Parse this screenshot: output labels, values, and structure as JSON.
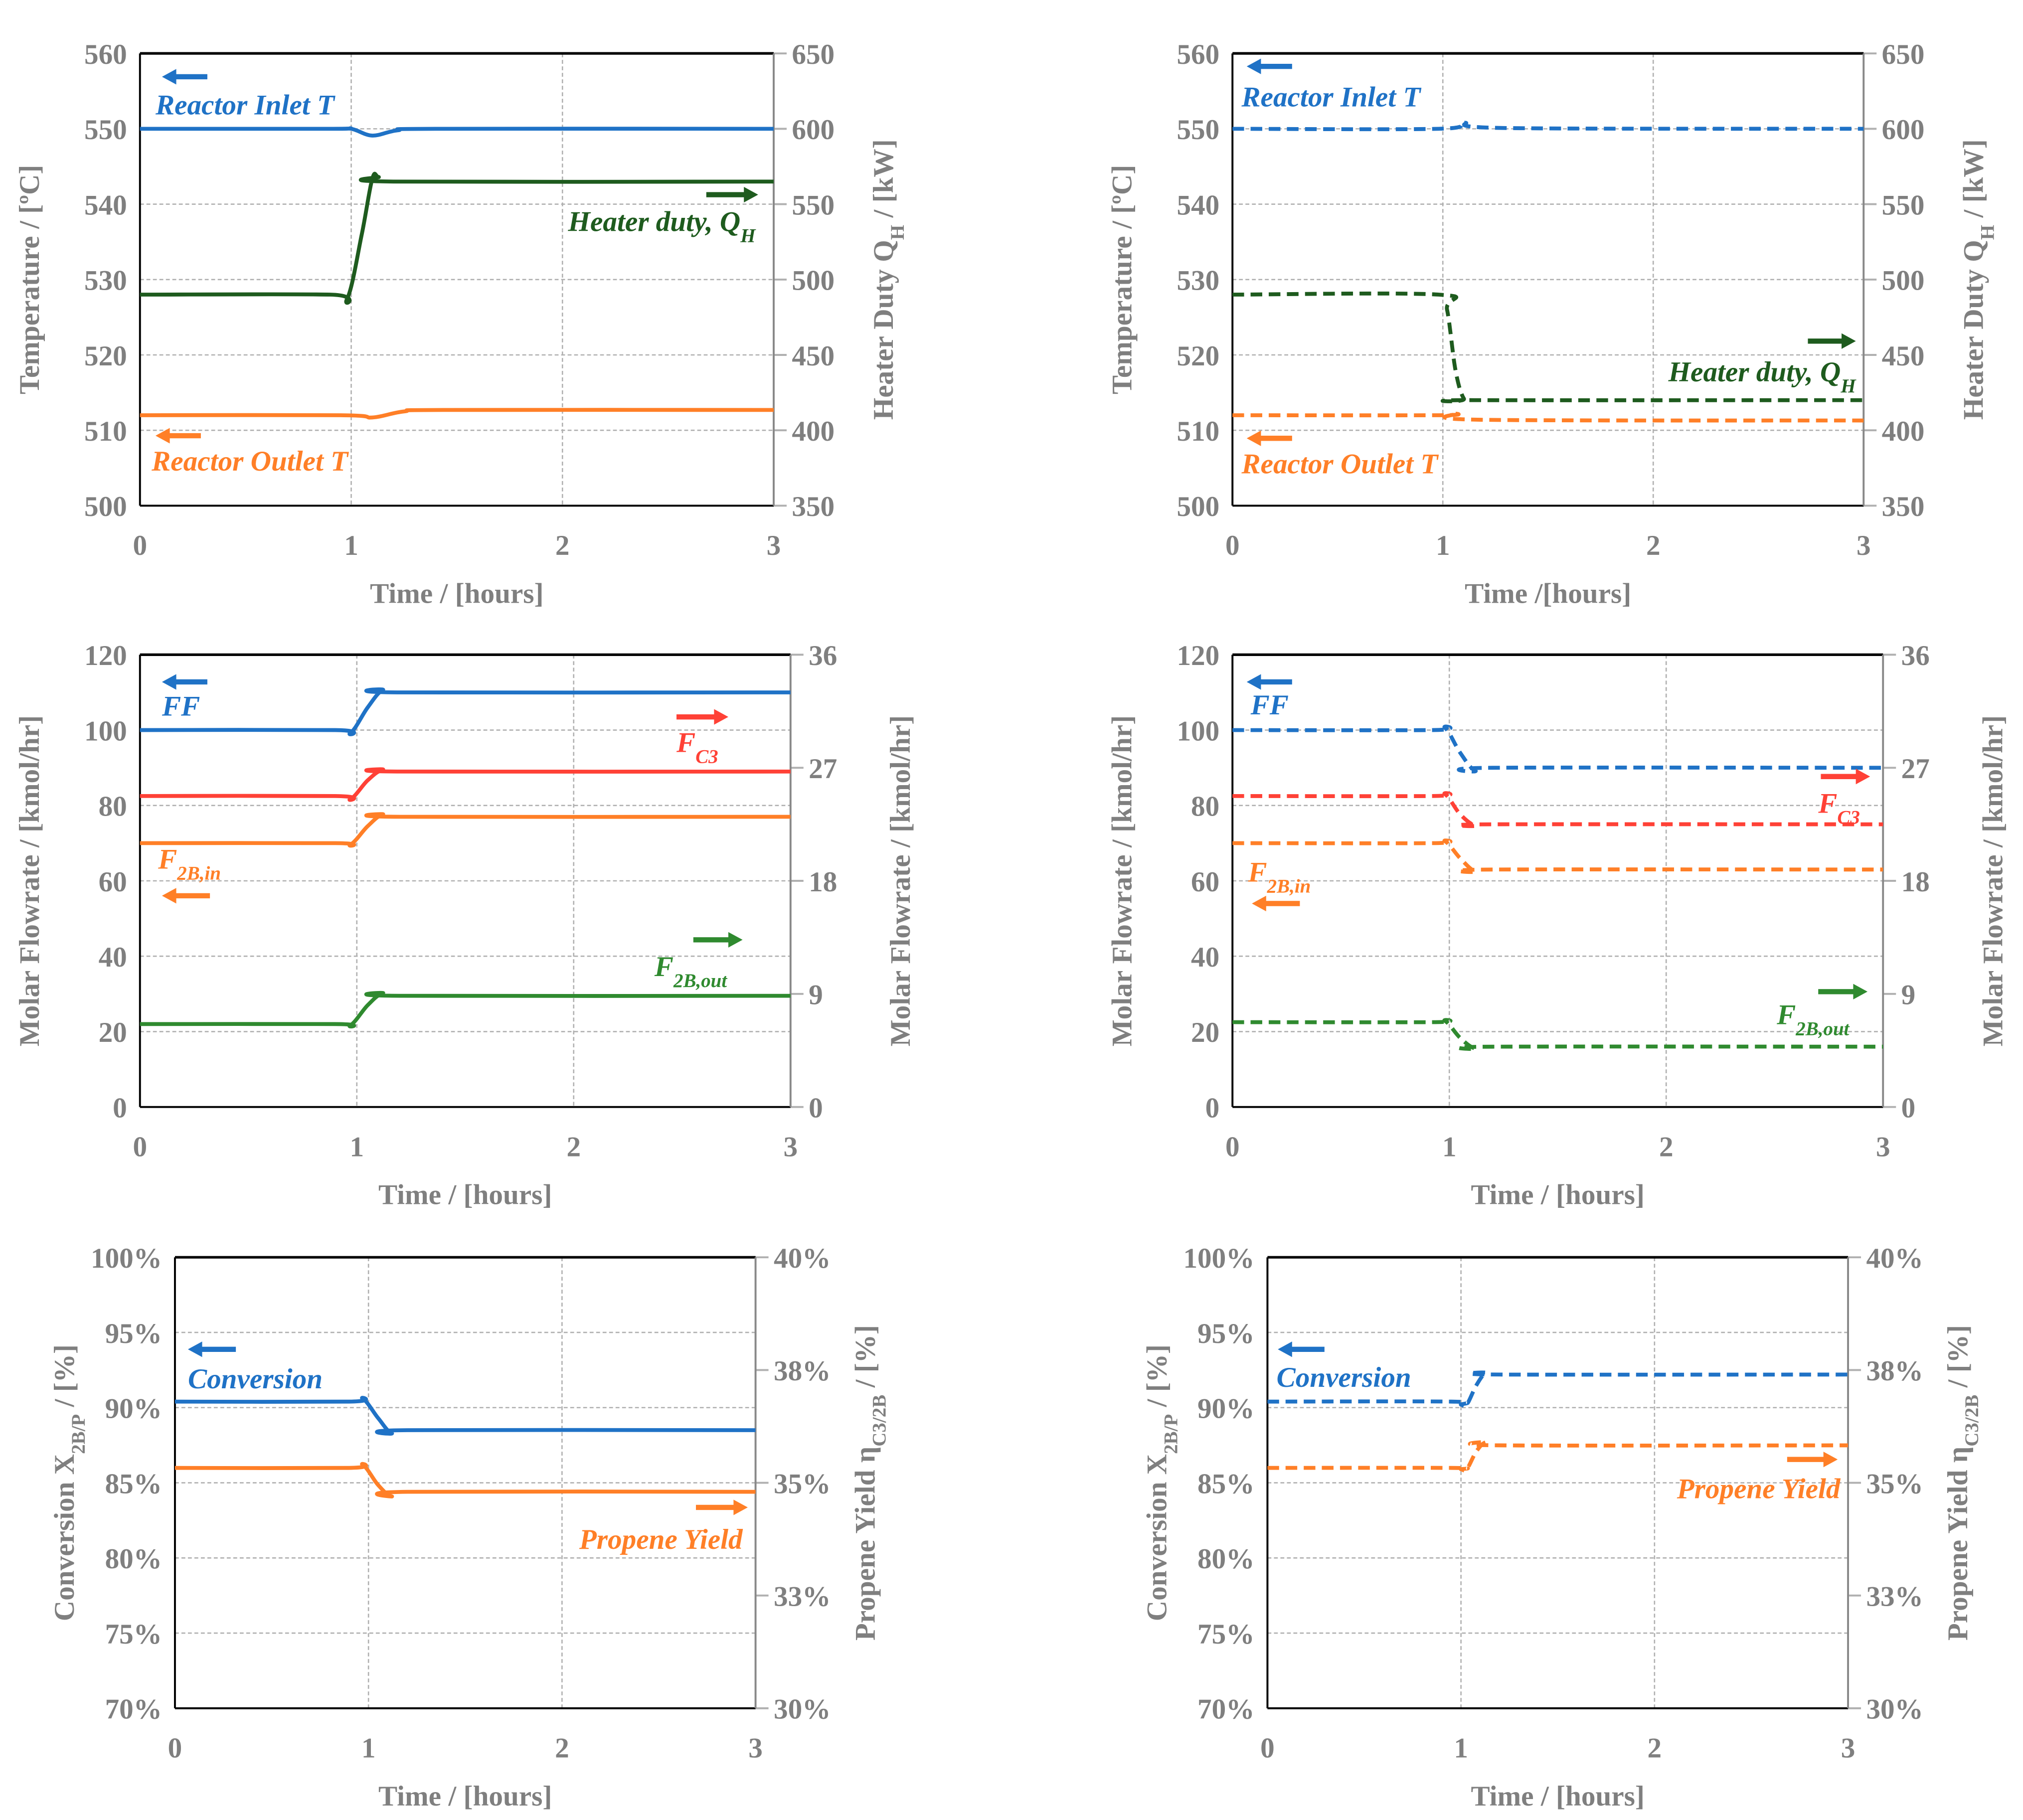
{
  "colors": {
    "blue": "#1f72c6",
    "orange": "#ff7f27",
    "darkgreen": "#1e5b1e",
    "green": "#2f8a2f",
    "red": "#ff4136",
    "axis": "#7f7f7f",
    "grid": "#b0b0b0"
  },
  "chart_data": [
    {
      "type": "line",
      "id": "temp-solid",
      "style": "solid",
      "xlabel": "Time / [hours]",
      "xlim": [
        0,
        3
      ],
      "xticks": [
        0,
        1,
        2,
        3
      ],
      "ylabel": {
        "text": "Temperature / [ºC]"
      },
      "ylim": [
        500,
        560
      ],
      "yticks": [
        500,
        510,
        520,
        530,
        540,
        550,
        560
      ],
      "ytick_labels": [
        "500",
        "510",
        "520",
        "530",
        "540",
        "550",
        "560"
      ],
      "y2label": {
        "text": "Heater Duty Q",
        "sub": "H",
        "rest": "/ [kW]"
      },
      "y2lim": [
        350,
        650
      ],
      "y2ticks": [
        350,
        400,
        450,
        500,
        550,
        600,
        650
      ],
      "y2tick_labels": [
        "350",
        "400",
        "450",
        "500",
        "550",
        "600",
        "650"
      ],
      "series": [
        {
          "name": "Reactor Inlet T",
          "color": "blue",
          "axis": "left",
          "arrow": "left",
          "points": [
            [
              0,
              550
            ],
            [
              0.9,
              550
            ],
            [
              1.0,
              550
            ],
            [
              1.1,
              549.1
            ],
            [
              1.22,
              549.8
            ],
            [
              1.4,
              550
            ],
            [
              3,
              550
            ]
          ]
        },
        {
          "name": "Heater duty, Q",
          "sub": "H",
          "color": "darkgreen",
          "axis": "right",
          "arrow": "right",
          "points": [
            [
              0,
              490
            ],
            [
              0.9,
              490
            ],
            [
              0.98,
              487
            ],
            [
              1.05,
              530
            ],
            [
              1.1,
              567
            ],
            [
              1.13,
              568
            ],
            [
              1.2,
              565
            ],
            [
              3,
              565
            ]
          ]
        },
        {
          "name": "Reactor Outlet T",
          "color": "orange",
          "axis": "left",
          "arrow": "left",
          "points": [
            [
              0,
              512
            ],
            [
              0.95,
              512
            ],
            [
              1.1,
              511.7
            ],
            [
              1.25,
              512.5
            ],
            [
              1.45,
              512.7
            ],
            [
              3,
              512.7
            ]
          ]
        }
      ]
    },
    {
      "type": "line",
      "id": "temp-dashed",
      "style": "dashed",
      "xlabel": "Time /[hours]",
      "xlim": [
        0,
        3
      ],
      "xticks": [
        0,
        1,
        2,
        3
      ],
      "ylabel": {
        "text": "Temperature / [ºC]"
      },
      "ylim": [
        500,
        560
      ],
      "yticks": [
        500,
        510,
        520,
        530,
        540,
        550,
        560
      ],
      "ytick_labels": [
        "500",
        "510",
        "520",
        "530",
        "540",
        "550",
        "560"
      ],
      "y2label": {
        "text": "Heater Duty Q",
        "sub": "H",
        "rest": "/ [kW]"
      },
      "y2lim": [
        350,
        650
      ],
      "y2ticks": [
        350,
        400,
        450,
        500,
        550,
        600,
        650
      ],
      "y2tick_labels": [
        "350",
        "400",
        "450",
        "500",
        "550",
        "600",
        "650"
      ],
      "series": [
        {
          "name": "Reactor Inlet T",
          "color": "blue",
          "axis": "left",
          "arrow": "left",
          "points": [
            [
              0,
              550
            ],
            [
              0.98,
              550
            ],
            [
              1.1,
              550.8
            ],
            [
              1.3,
              550.1
            ],
            [
              3,
              550
            ]
          ]
        },
        {
          "name": "Heater duty, Q",
          "sub": "H",
          "color": "darkgreen",
          "axis": "right",
          "arrow": "right",
          "points": [
            [
              0,
              490
            ],
            [
              0.98,
              490
            ],
            [
              1.02,
              480
            ],
            [
              1.06,
              440
            ],
            [
              1.1,
              421
            ],
            [
              1.15,
              420
            ],
            [
              3,
              420
            ]
          ]
        },
        {
          "name": "Reactor Outlet T",
          "color": "orange",
          "axis": "left",
          "arrow": "left",
          "points": [
            [
              0,
              512
            ],
            [
              0.98,
              512
            ],
            [
              1.06,
              512.2
            ],
            [
              1.18,
              511.4
            ],
            [
              3,
              511.3
            ]
          ]
        }
      ]
    },
    {
      "type": "line",
      "id": "flow-solid",
      "style": "solid",
      "xlabel": "Time / [hours]",
      "xlim": [
        0,
        3
      ],
      "xticks": [
        0,
        1,
        2,
        3
      ],
      "ylabel": {
        "text": "Molar Flowrate / [kmol/hr]"
      },
      "ylim": [
        0,
        120
      ],
      "yticks": [
        0,
        20,
        40,
        60,
        80,
        100,
        120
      ],
      "ytick_labels": [
        "0",
        "20",
        "40",
        "60",
        "80",
        "100",
        "120"
      ],
      "y2label": {
        "text": "Molar Flowrate / [kmol/hr]"
      },
      "y2lim": [
        0,
        36
      ],
      "y2ticks": [
        0,
        9,
        18,
        27,
        36
      ],
      "y2tick_labels": [
        "0",
        "9",
        "18",
        "27",
        "36"
      ],
      "series": [
        {
          "name": "FF",
          "color": "blue",
          "axis": "left",
          "arrow": "left",
          "points": [
            [
              0,
              100
            ],
            [
              0.9,
              100
            ],
            [
              0.97,
              99.2
            ],
            [
              1.05,
              106
            ],
            [
              1.12,
              110.6
            ],
            [
              1.2,
              110
            ],
            [
              3,
              110
            ]
          ]
        },
        {
          "name": "F",
          "sub": "C3",
          "color": "red",
          "axis": "right",
          "arrow": "right",
          "points": [
            [
              0,
              24.75
            ],
            [
              0.9,
              24.75
            ],
            [
              0.97,
              24.5
            ],
            [
              1.05,
              26
            ],
            [
              1.12,
              26.85
            ],
            [
              1.2,
              26.7
            ],
            [
              3,
              26.7
            ]
          ]
        },
        {
          "name": "F",
          "sub": "2B,in",
          "color": "orange",
          "axis": "left",
          "arrow": "left",
          "points": [
            [
              0,
              70
            ],
            [
              0.9,
              70
            ],
            [
              0.97,
              69.6
            ],
            [
              1.05,
              74.5
            ],
            [
              1.12,
              77.6
            ],
            [
              1.2,
              77
            ],
            [
              3,
              77
            ]
          ]
        },
        {
          "name": "F",
          "sub": "2B,out",
          "color": "green",
          "axis": "right",
          "arrow": "right",
          "points": [
            [
              0,
              6.6
            ],
            [
              0.9,
              6.6
            ],
            [
              0.97,
              6.5
            ],
            [
              1.05,
              8.1
            ],
            [
              1.12,
              9.05
            ],
            [
              1.2,
              8.85
            ],
            [
              3,
              8.85
            ]
          ]
        }
      ]
    },
    {
      "type": "line",
      "id": "flow-dashed",
      "style": "dashed",
      "xlabel": "Time / [hours]",
      "xlim": [
        0,
        3
      ],
      "xticks": [
        0,
        1,
        2,
        3
      ],
      "ylabel": {
        "text": "Molar Flowrate / [kmol/hr]"
      },
      "ylim": [
        0,
        120
      ],
      "yticks": [
        0,
        20,
        40,
        60,
        80,
        100,
        120
      ],
      "ytick_labels": [
        "0",
        "20",
        "40",
        "60",
        "80",
        "100",
        "120"
      ],
      "y2label": {
        "text": "Molar Flowrate / [kmol/hr]"
      },
      "y2lim": [
        0,
        36
      ],
      "y2ticks": [
        0,
        9,
        18,
        27,
        36
      ],
      "y2tick_labels": [
        "0",
        "9",
        "18",
        "27",
        "36"
      ],
      "series": [
        {
          "name": "FF",
          "color": "blue",
          "axis": "left",
          "arrow": "left",
          "points": [
            [
              0,
              100
            ],
            [
              0.92,
              100
            ],
            [
              0.98,
              100.6
            ],
            [
              1.05,
              94
            ],
            [
              1.12,
              89.2
            ],
            [
              1.2,
              90
            ],
            [
              3,
              90
            ]
          ]
        },
        {
          "name": "F",
          "sub": "C3",
          "color": "red",
          "axis": "right",
          "arrow": "right",
          "points": [
            [
              0,
              24.75
            ],
            [
              0.92,
              24.75
            ],
            [
              0.98,
              24.9
            ],
            [
              1.05,
              23.3
            ],
            [
              1.12,
              22.4
            ],
            [
              1.2,
              22.5
            ],
            [
              3,
              22.5
            ]
          ]
        },
        {
          "name": "F",
          "sub": "2B,in",
          "color": "orange",
          "axis": "left",
          "arrow": "left",
          "points": [
            [
              0,
              70
            ],
            [
              0.92,
              70
            ],
            [
              0.98,
              70.5
            ],
            [
              1.05,
              66
            ],
            [
              1.12,
              62.5
            ],
            [
              1.2,
              63
            ],
            [
              3,
              63
            ]
          ]
        },
        {
          "name": "F",
          "sub": "2B,out",
          "color": "green",
          "axis": "right",
          "arrow": "right",
          "points": [
            [
              0,
              6.75
            ],
            [
              0.92,
              6.75
            ],
            [
              0.98,
              6.85
            ],
            [
              1.05,
              5.5
            ],
            [
              1.12,
              4.65
            ],
            [
              1.2,
              4.8
            ],
            [
              3,
              4.8
            ]
          ]
        }
      ]
    },
    {
      "type": "line",
      "id": "conv-solid",
      "style": "solid",
      "xlabel": "Time / [hours]",
      "xlim": [
        0,
        3
      ],
      "xticks": [
        0,
        1,
        2,
        3
      ],
      "ylabel": {
        "text": "Conversion X",
        "sub": "2B/P",
        "rest": " / [%]"
      },
      "ylim": [
        70,
        100
      ],
      "yticks": [
        70,
        75,
        80,
        85,
        90,
        95,
        100
      ],
      "ytick_labels": [
        "70%",
        "75%",
        "80%",
        "85%",
        "90%",
        "95%",
        "100%"
      ],
      "y2label": {
        "text": "Propene Yield η",
        "sub": "C3/2B",
        "rest": " / [%]"
      },
      "y2lim": [
        30,
        40
      ],
      "y2ticks": [
        30,
        32.5,
        35,
        37.5,
        40
      ],
      "y2tick_labels": [
        "30%",
        "33%",
        "35%",
        "38%",
        "40%"
      ],
      "series": [
        {
          "name": "Conversion",
          "color": "blue",
          "axis": "left",
          "arrow": "left",
          "points": [
            [
              0,
              90.4
            ],
            [
              0.9,
              90.4
            ],
            [
              0.97,
              90.6
            ],
            [
              1.05,
              89.3
            ],
            [
              1.12,
              88.3
            ],
            [
              1.2,
              88.5
            ],
            [
              3,
              88.5
            ]
          ]
        },
        {
          "name": "Propene Yield",
          "color": "orange",
          "axis": "right",
          "arrow": "right",
          "points": [
            [
              0,
              35.33
            ],
            [
              0.9,
              35.33
            ],
            [
              0.97,
              35.4
            ],
            [
              1.05,
              34.95
            ],
            [
              1.12,
              34.7
            ],
            [
              1.2,
              34.8
            ],
            [
              3,
              34.8
            ]
          ]
        }
      ]
    },
    {
      "type": "line",
      "id": "conv-dashed",
      "style": "dashed",
      "xlabel": "Time / [hours]",
      "xlim": [
        0,
        3
      ],
      "xticks": [
        0,
        1,
        2,
        3
      ],
      "ylabel": {
        "text": "Conversion X",
        "sub": "2B/P",
        "rest": " / [%]"
      },
      "ylim": [
        70,
        100
      ],
      "yticks": [
        70,
        75,
        80,
        85,
        90,
        95,
        100
      ],
      "ytick_labels": [
        "70%",
        "75%",
        "80%",
        "85%",
        "90%",
        "95%",
        "100%"
      ],
      "y2label": {
        "text": "Propene Yield η",
        "sub": "C3/2B",
        "rest": " / [%]"
      },
      "y2lim": [
        30,
        40
      ],
      "y2ticks": [
        30,
        32.5,
        35,
        37.5,
        40
      ],
      "y2tick_labels": [
        "30%",
        "33%",
        "35%",
        "38%",
        "40%"
      ],
      "series": [
        {
          "name": "Conversion",
          "color": "blue",
          "axis": "left",
          "arrow": "left",
          "points": [
            [
              0,
              90.4
            ],
            [
              0.95,
              90.4
            ],
            [
              1.0,
              90.2
            ],
            [
              1.03,
              90.2
            ],
            [
              1.08,
              91.5
            ],
            [
              1.13,
              92.3
            ],
            [
              1.2,
              92.2
            ],
            [
              3,
              92.2
            ]
          ]
        },
        {
          "name": "Propene Yield",
          "color": "orange",
          "axis": "right",
          "arrow": "right",
          "points": [
            [
              0,
              35.33
            ],
            [
              0.95,
              35.33
            ],
            [
              1.0,
              35.3
            ],
            [
              1.03,
              35.3
            ],
            [
              1.08,
              35.7
            ],
            [
              1.13,
              35.9
            ],
            [
              1.2,
              35.83
            ],
            [
              3,
              35.83
            ]
          ]
        }
      ]
    }
  ]
}
